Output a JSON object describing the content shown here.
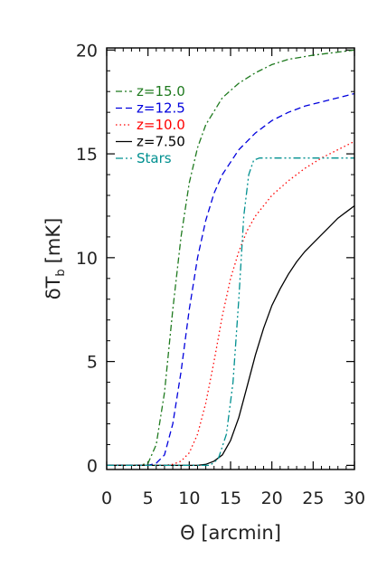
{
  "chart_data": {
    "type": "line",
    "xlabel": "Θ [arcmin]",
    "ylabel": "δT",
    "ylabel_subscript": "b",
    "ylabel_unit": "[mK]",
    "xlim": [
      0,
      30
    ],
    "ylim": [
      -0.2,
      20.1
    ],
    "xticks": [
      0,
      5,
      10,
      15,
      20,
      25,
      30
    ],
    "yticks": [
      0,
      5,
      10,
      15,
      20
    ],
    "grid": false,
    "legend_position": "top-left",
    "series": [
      {
        "name": "z=15.0",
        "color": "#1f7a1f",
        "dash": "dash-dot",
        "points": [
          [
            0,
            0
          ],
          [
            4,
            0
          ],
          [
            5,
            0.1
          ],
          [
            6,
            1
          ],
          [
            7,
            3.5
          ],
          [
            8,
            7.5
          ],
          [
            9,
            11
          ],
          [
            10,
            13.6
          ],
          [
            11,
            15.3
          ],
          [
            12,
            16.4
          ],
          [
            14,
            17.7
          ],
          [
            16,
            18.4
          ],
          [
            18,
            18.9
          ],
          [
            20,
            19.3
          ],
          [
            22,
            19.55
          ],
          [
            25,
            19.75
          ],
          [
            28,
            19.9
          ],
          [
            30,
            20
          ]
        ]
      },
      {
        "name": "z=12.5",
        "color": "#0000dd",
        "dash": "dashed",
        "points": [
          [
            0,
            0
          ],
          [
            5,
            0
          ],
          [
            6,
            0.1
          ],
          [
            7,
            0.5
          ],
          [
            8,
            2
          ],
          [
            9,
            4.5
          ],
          [
            10,
            7.5
          ],
          [
            11,
            10
          ],
          [
            12,
            11.8
          ],
          [
            13,
            13.1
          ],
          [
            14,
            14
          ],
          [
            16,
            15.2
          ],
          [
            18,
            16
          ],
          [
            20,
            16.6
          ],
          [
            22,
            17
          ],
          [
            24,
            17.3
          ],
          [
            27,
            17.6
          ],
          [
            30,
            17.9
          ]
        ]
      },
      {
        "name": "z=10.0",
        "color": "#ff0000",
        "dash": "dotted",
        "points": [
          [
            0,
            0
          ],
          [
            7,
            0
          ],
          [
            8,
            0.05
          ],
          [
            9,
            0.2
          ],
          [
            10,
            0.6
          ],
          [
            11,
            1.5
          ],
          [
            12,
            3
          ],
          [
            13,
            5
          ],
          [
            14,
            7.2
          ],
          [
            15,
            9
          ],
          [
            16,
            10.3
          ],
          [
            17,
            11.3
          ],
          [
            18,
            12
          ],
          [
            20,
            13
          ],
          [
            22,
            13.7
          ],
          [
            24,
            14.3
          ],
          [
            26,
            14.8
          ],
          [
            28,
            15.2
          ],
          [
            30,
            15.6
          ]
        ]
      },
      {
        "name": "z=7.50",
        "color": "#000000",
        "dash": "solid",
        "points": [
          [
            0,
            0
          ],
          [
            11,
            0
          ],
          [
            12,
            0.05
          ],
          [
            13,
            0.2
          ],
          [
            14,
            0.5
          ],
          [
            15,
            1.2
          ],
          [
            16,
            2.3
          ],
          [
            17,
            3.8
          ],
          [
            18,
            5.3
          ],
          [
            19,
            6.6
          ],
          [
            20,
            7.7
          ],
          [
            21,
            8.5
          ],
          [
            22,
            9.2
          ],
          [
            23,
            9.8
          ],
          [
            24,
            10.3
          ],
          [
            25,
            10.7
          ],
          [
            26,
            11.1
          ],
          [
            27,
            11.5
          ],
          [
            28,
            11.9
          ],
          [
            29,
            12.2
          ],
          [
            30,
            12.5
          ]
        ]
      },
      {
        "name": "Stars",
        "color": "#009090",
        "dash": "dash-dot-dot",
        "points": [
          [
            0,
            0
          ],
          [
            12.5,
            0
          ],
          [
            13.5,
            0.3
          ],
          [
            14.5,
            1.5
          ],
          [
            15.3,
            4
          ],
          [
            16,
            8
          ],
          [
            16.6,
            12
          ],
          [
            17.2,
            14
          ],
          [
            17.8,
            14.7
          ],
          [
            18.5,
            14.8
          ],
          [
            30,
            14.8
          ]
        ]
      }
    ]
  }
}
